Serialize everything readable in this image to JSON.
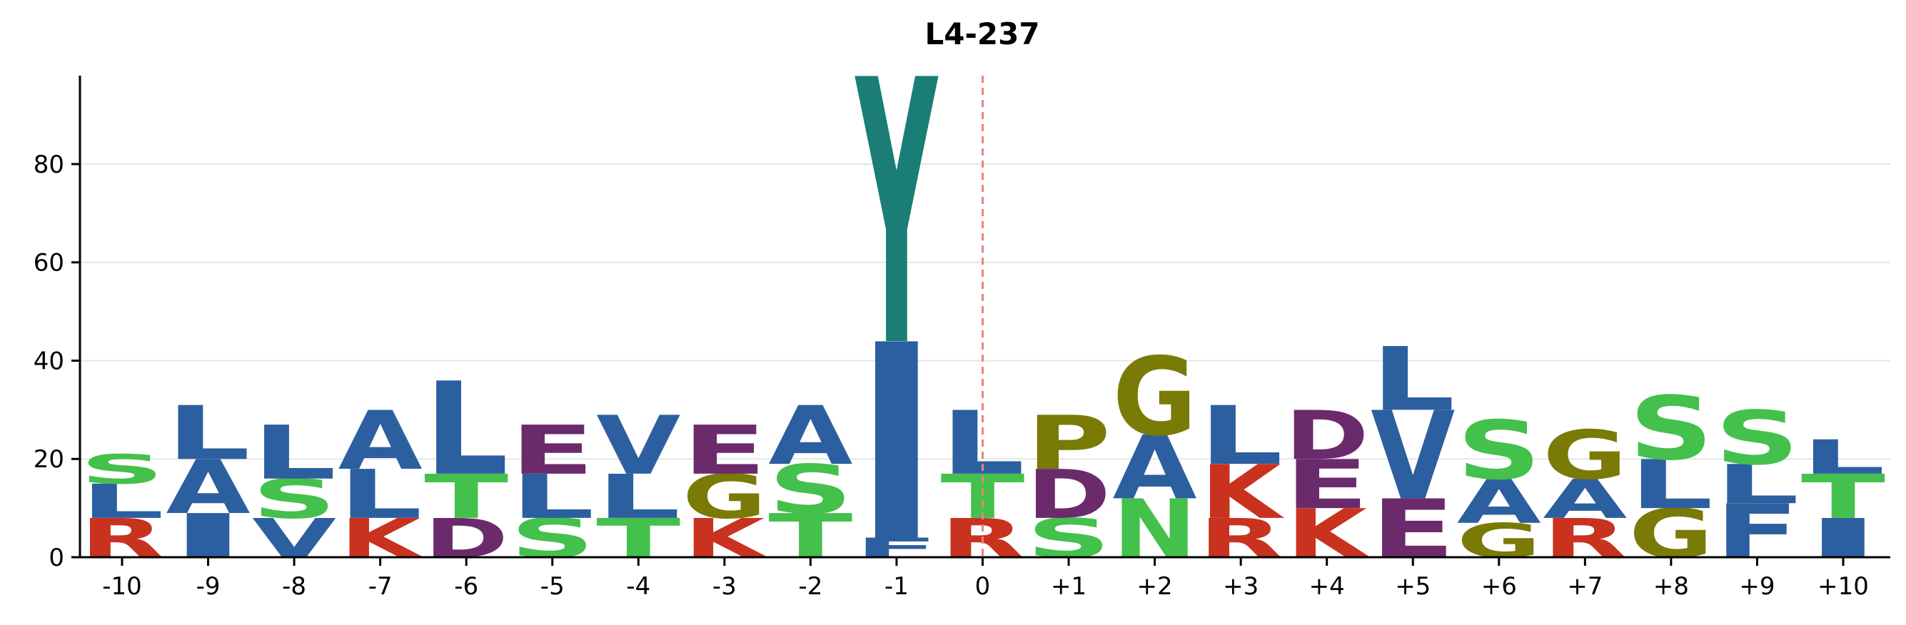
{
  "chart_data": {
    "type": "sequence-logo",
    "title": "L4-237",
    "xlabel": "",
    "ylabel": "",
    "ylim": [
      0,
      98
    ],
    "yticks": [
      0,
      20,
      40,
      60,
      80
    ],
    "grid": "horizontal",
    "reference_line": {
      "position": "0",
      "style": "dashed",
      "color": "#f08080"
    },
    "colors": {
      "hydrophobic": "#2c5fa0",
      "polar": "#44c04c",
      "basic": "#c8321e",
      "acidic": "#6b2a6b",
      "special": "#7a7a06",
      "aromatic": "#1a7d76"
    },
    "residue_color_groups": {
      "A": "hydrophobic",
      "V": "hydrophobic",
      "L": "hydrophobic",
      "I": "hydrophobic",
      "F": "hydrophobic",
      "S": "polar",
      "T": "polar",
      "N": "polar",
      "R": "basic",
      "K": "basic",
      "D": "acidic",
      "E": "acidic",
      "G": "special",
      "P": "special",
      "Y": "aromatic"
    },
    "positions": [
      {
        "label": "-10",
        "stack": [
          {
            "aa": "R",
            "value": 8
          },
          {
            "aa": "L",
            "value": 7
          },
          {
            "aa": "S",
            "value": 6
          }
        ]
      },
      {
        "label": "-9",
        "stack": [
          {
            "aa": "I",
            "value": 9
          },
          {
            "aa": "A",
            "value": 11
          },
          {
            "aa": "L",
            "value": 11
          }
        ]
      },
      {
        "label": "-8",
        "stack": [
          {
            "aa": "V",
            "value": 8
          },
          {
            "aa": "S",
            "value": 8
          },
          {
            "aa": "L",
            "value": 11
          }
        ]
      },
      {
        "label": "-7",
        "stack": [
          {
            "aa": "K",
            "value": 8
          },
          {
            "aa": "L",
            "value": 10
          },
          {
            "aa": "A",
            "value": 12
          }
        ]
      },
      {
        "label": "-6",
        "stack": [
          {
            "aa": "D",
            "value": 8
          },
          {
            "aa": "T",
            "value": 9
          },
          {
            "aa": "L",
            "value": 19
          }
        ]
      },
      {
        "label": "-5",
        "stack": [
          {
            "aa": "S",
            "value": 8
          },
          {
            "aa": "L",
            "value": 9
          },
          {
            "aa": "E",
            "value": 10
          }
        ]
      },
      {
        "label": "-4",
        "stack": [
          {
            "aa": "T",
            "value": 8
          },
          {
            "aa": "L",
            "value": 9
          },
          {
            "aa": "V",
            "value": 12
          }
        ]
      },
      {
        "label": "-3",
        "stack": [
          {
            "aa": "K",
            "value": 8
          },
          {
            "aa": "G",
            "value": 9
          },
          {
            "aa": "E",
            "value": 10
          }
        ]
      },
      {
        "label": "-2",
        "stack": [
          {
            "aa": "T",
            "value": 9
          },
          {
            "aa": "S",
            "value": 10
          },
          {
            "aa": "A",
            "value": 12
          }
        ]
      },
      {
        "label": "-1",
        "stack": [
          {
            "aa": "F",
            "value": 4
          },
          {
            "aa": "I",
            "value": 40
          },
          {
            "aa": "Y",
            "value": 54
          }
        ]
      },
      {
        "label": "0",
        "stack": [
          {
            "aa": "R",
            "value": 8
          },
          {
            "aa": "T",
            "value": 9
          },
          {
            "aa": "L",
            "value": 13
          }
        ]
      },
      {
        "label": "+1",
        "stack": [
          {
            "aa": "S",
            "value": 8
          },
          {
            "aa": "D",
            "value": 10
          },
          {
            "aa": "P",
            "value": 11
          }
        ]
      },
      {
        "label": "+2",
        "stack": [
          {
            "aa": "N",
            "value": 12
          },
          {
            "aa": "A",
            "value": 13
          },
          {
            "aa": "G",
            "value": 16
          }
        ]
      },
      {
        "label": "+3",
        "stack": [
          {
            "aa": "R",
            "value": 8
          },
          {
            "aa": "K",
            "value": 11
          },
          {
            "aa": "L",
            "value": 12
          }
        ]
      },
      {
        "label": "+4",
        "stack": [
          {
            "aa": "K",
            "value": 10
          },
          {
            "aa": "E",
            "value": 10
          },
          {
            "aa": "D",
            "value": 10
          }
        ]
      },
      {
        "label": "+5",
        "stack": [
          {
            "aa": "E",
            "value": 12
          },
          {
            "aa": "V",
            "value": 18
          },
          {
            "aa": "L",
            "value": 13
          }
        ]
      },
      {
        "label": "+6",
        "stack": [
          {
            "aa": "G",
            "value": 7
          },
          {
            "aa": "A",
            "value": 9
          },
          {
            "aa": "S",
            "value": 12
          }
        ]
      },
      {
        "label": "+7",
        "stack": [
          {
            "aa": "R",
            "value": 8
          },
          {
            "aa": "A",
            "value": 8
          },
          {
            "aa": "G",
            "value": 10
          }
        ]
      },
      {
        "label": "+8",
        "stack": [
          {
            "aa": "G",
            "value": 10
          },
          {
            "aa": "L",
            "value": 10
          },
          {
            "aa": "S",
            "value": 13
          }
        ]
      },
      {
        "label": "+9",
        "stack": [
          {
            "aa": "F",
            "value": 11
          },
          {
            "aa": "L",
            "value": 8
          },
          {
            "aa": "S",
            "value": 11
          }
        ]
      },
      {
        "label": "+10",
        "stack": [
          {
            "aa": "I",
            "value": 8
          },
          {
            "aa": "T",
            "value": 9
          },
          {
            "aa": "L",
            "value": 7
          }
        ]
      }
    ]
  }
}
